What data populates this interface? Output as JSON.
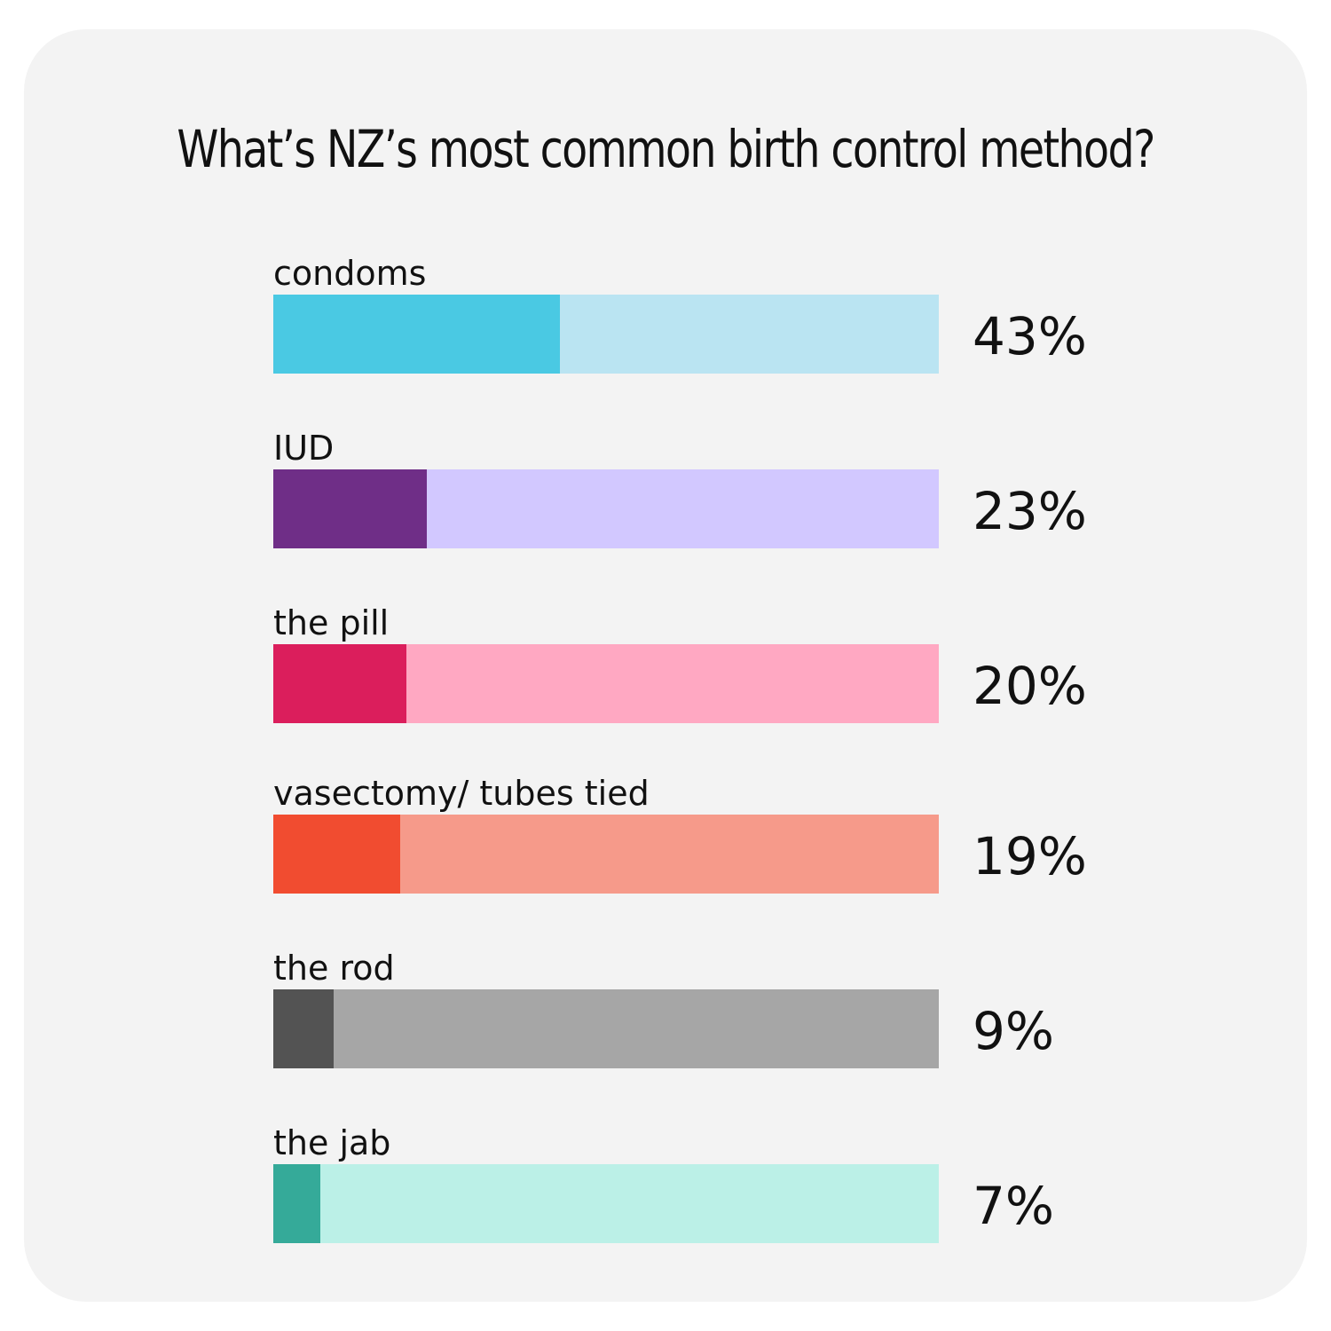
{
  "chart_data": {
    "type": "bar",
    "title": "What’s NZ’s most common birth control method?",
    "xlabel": "",
    "ylabel": "",
    "xlim": [
      0,
      100
    ],
    "categories": [
      "condoms",
      "IUD",
      "the pill",
      "vasectomy/ tubes tied",
      "the rod",
      "the jab"
    ],
    "values": [
      43,
      23,
      20,
      19,
      9,
      7
    ],
    "value_labels": [
      "43%",
      "23%",
      "20%",
      "19%",
      "9%",
      "7%"
    ],
    "fill_colors": [
      "#4ac9e3",
      "#6f2e87",
      "#db1e5c",
      "#f14c30",
      "#535353",
      "#35aa99"
    ],
    "track_colors": [
      "#bae4f2",
      "#d2c8ff",
      "#ffa8c2",
      "#f69a8a",
      "#a6a6a6",
      "#bbf0e7"
    ]
  }
}
